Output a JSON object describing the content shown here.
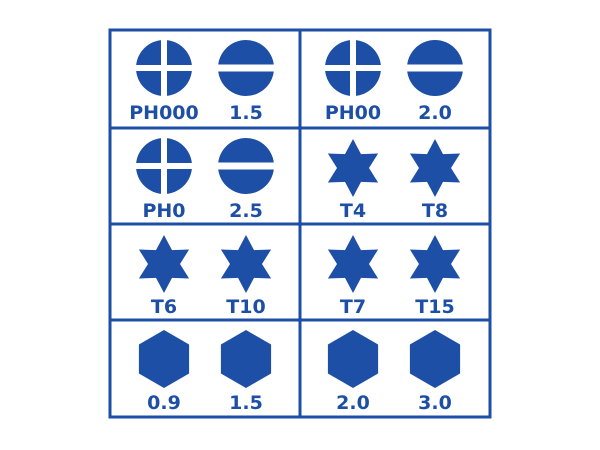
{
  "colors": {
    "primary": "#1d4fa6",
    "background": "#ffffff"
  },
  "grid": {
    "rows": 4,
    "columns": 2,
    "cells": [
      {
        "bits": [
          {
            "type": "phillips",
            "label": "PH000"
          },
          {
            "type": "slotted",
            "label": "1.5"
          }
        ]
      },
      {
        "bits": [
          {
            "type": "phillips",
            "label": "PH00"
          },
          {
            "type": "slotted",
            "label": "2.0"
          }
        ]
      },
      {
        "bits": [
          {
            "type": "phillips",
            "label": "PH0"
          },
          {
            "type": "slotted",
            "label": "2.5"
          }
        ]
      },
      {
        "bits": [
          {
            "type": "torx",
            "label": "T4"
          },
          {
            "type": "torx",
            "label": "T8"
          }
        ]
      },
      {
        "bits": [
          {
            "type": "torx",
            "label": "T6"
          },
          {
            "type": "torx",
            "label": "T10"
          }
        ]
      },
      {
        "bits": [
          {
            "type": "torx",
            "label": "T7"
          },
          {
            "type": "torx",
            "label": "T15"
          }
        ]
      },
      {
        "bits": [
          {
            "type": "hex",
            "label": "0.9"
          },
          {
            "type": "hex",
            "label": "1.5"
          }
        ]
      },
      {
        "bits": [
          {
            "type": "hex",
            "label": "2.0"
          },
          {
            "type": "hex",
            "label": "3.0"
          }
        ]
      }
    ]
  }
}
